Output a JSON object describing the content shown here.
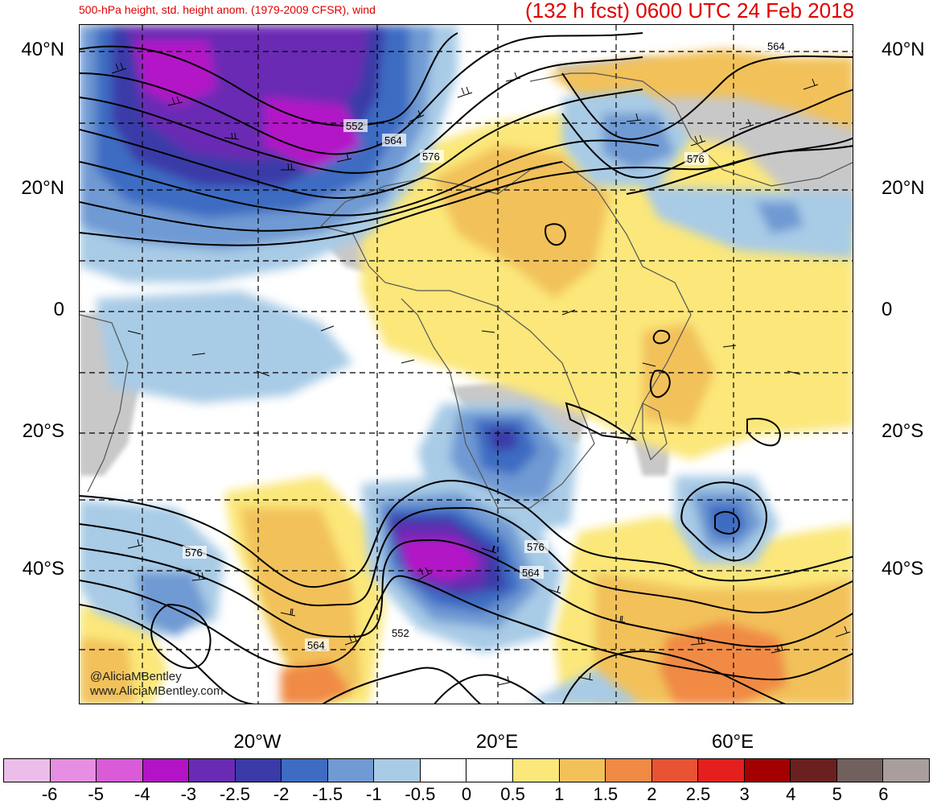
{
  "header": {
    "left_title": "500-hPa height, std. height anom. (1979-2009 CFSR), wind",
    "right_title": "(132 h fcst) 0600 UTC 24 Feb 2018"
  },
  "latitudes": [
    "40°N",
    "20°N",
    "0",
    "20°S",
    "40°S"
  ],
  "longitudes": [
    "20°W",
    "20°E",
    "60°E"
  ],
  "contour_labels": [
    "564",
    "552",
    "564",
    "576",
    "576",
    "576",
    "576",
    "564",
    "552",
    "564"
  ],
  "credit": {
    "handle": "@AliciaMBentley",
    "website": "www.AliciaMBentley.com"
  },
  "colorbar": {
    "labels": [
      "-6",
      "-5",
      "-4",
      "-3",
      "-2.5",
      "-2",
      "-1.5",
      "-1",
      "-0.5",
      "0",
      "0.5",
      "1",
      "1.5",
      "2",
      "2.5",
      "3",
      "4",
      "5",
      "6"
    ],
    "colors": [
      "#ecbde8",
      "#e58ee2",
      "#d95bd7",
      "#b312c7",
      "#6a2bb4",
      "#3a3aa8",
      "#3e6cc2",
      "#6f9ad3",
      "#a8cbe6",
      "#ffffff",
      "#ffffff",
      "#fbe77a",
      "#f2c15a",
      "#f08a45",
      "#ea5234",
      "#e51e1e",
      "#a30000",
      "#6b2020",
      "#72605e",
      "#a89e9c"
    ]
  },
  "legend": {
    "quantity": "standardized 500-hPa height anomaly"
  }
}
